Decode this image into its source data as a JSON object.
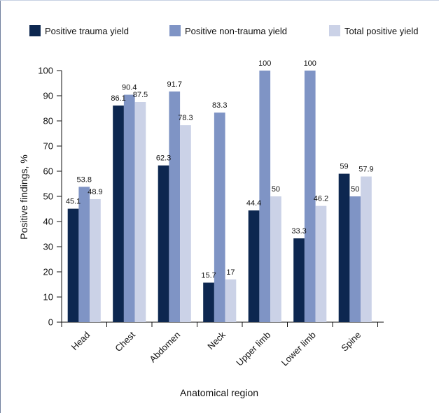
{
  "chart_data": {
    "type": "bar",
    "categories": [
      "Head",
      "Chest",
      "Abdomen",
      "Neck",
      "Upper limb",
      "Lower limb",
      "Spine"
    ],
    "series": [
      {
        "name": "Positive trauma yield",
        "values": [
          45.1,
          86.1,
          62.3,
          15.7,
          44.4,
          33.3,
          59
        ],
        "labels": [
          "45.1",
          "86.1",
          "62.3",
          "15.7",
          "44.4",
          "33.3",
          "59"
        ],
        "color": "#0d2750"
      },
      {
        "name": "Positive non-trauma yield",
        "values": [
          53.8,
          90.4,
          91.7,
          83.3,
          100,
          100,
          50
        ],
        "labels": [
          "53.8",
          "90.4",
          "91.7",
          "83.3",
          "100",
          "100",
          "50"
        ],
        "color": "#7f94c5"
      },
      {
        "name": "Total positive yield",
        "values": [
          48.9,
          87.5,
          78.3,
          17,
          50,
          46.2,
          57.9
        ],
        "labels": [
          "48.9",
          "87.5",
          "78.3",
          "17",
          "50",
          "46.2",
          "57.9"
        ],
        "color": "#cbd2e7"
      }
    ],
    "xlabel": "Anatomical region",
    "ylabel": "Positive findings, %",
    "ylim": [
      0,
      100
    ],
    "yticks": [
      "0",
      "10",
      "20",
      "30",
      "40",
      "50",
      "60",
      "70",
      "80",
      "90",
      "100"
    ],
    "grid": false,
    "legend": "top"
  },
  "colors": {
    "axis": "#111111",
    "text": "#111111",
    "frame": "#6f7f9d"
  }
}
